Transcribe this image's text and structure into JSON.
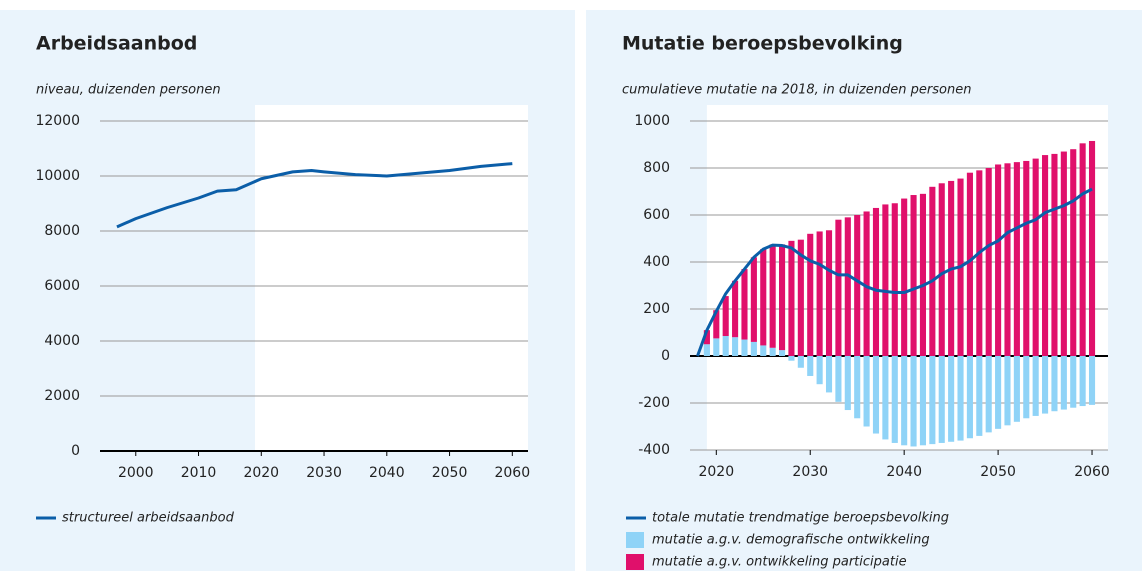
{
  "chart_data": [
    {
      "type": "line",
      "title": "Arbeidsaanbod",
      "subtitle": "niveau, duizenden personen",
      "forecast_start": 2019,
      "xlim": [
        1994.3,
        2062.5
      ],
      "xticks": [
        2000,
        2010,
        2020,
        2030,
        2040,
        2050,
        2060
      ],
      "ylim": [
        0,
        12000
      ],
      "yticks": [
        0,
        2000,
        4000,
        6000,
        8000,
        10000,
        12000
      ],
      "grid": true,
      "series": [
        {
          "name": "structureel arbeidsaanbod",
          "color": "#0b5ea8",
          "x": [
            1997,
            2000,
            2005,
            2010,
            2013,
            2016,
            2018,
            2020,
            2022,
            2025,
            2028,
            2030,
            2035,
            2040,
            2045,
            2050,
            2055,
            2060
          ],
          "values": [
            8150,
            8450,
            8850,
            9200,
            9450,
            9500,
            9700,
            9900,
            10000,
            10150,
            10200,
            10150,
            10050,
            10000,
            10100,
            10200,
            10350,
            10450
          ]
        }
      ]
    },
    {
      "type": "bar",
      "title": "Mutatie beroepsbevolking",
      "subtitle": "cumulatieve mutatie na 2018, in duizenden personen",
      "forecast_start": 2019,
      "xlim": [
        2017.2,
        2061.7
      ],
      "xticks": [
        2020,
        2030,
        2040,
        2050,
        2060
      ],
      "ylim": [
        -400,
        1000
      ],
      "yticks": [
        -400,
        -200,
        0,
        200,
        400,
        600,
        800,
        1000
      ],
      "grid": true,
      "x": [
        2019,
        2020,
        2021,
        2022,
        2023,
        2024,
        2025,
        2026,
        2027,
        2028,
        2029,
        2030,
        2031,
        2032,
        2033,
        2034,
        2035,
        2036,
        2037,
        2038,
        2039,
        2040,
        2041,
        2042,
        2043,
        2044,
        2045,
        2046,
        2047,
        2048,
        2049,
        2050,
        2051,
        2052,
        2053,
        2054,
        2055,
        2056,
        2057,
        2058,
        2059,
        2060
      ],
      "series": [
        {
          "name": "mutatie a.g.v. demografische ontwikkeling",
          "color": "#8fd3f7",
          "values": [
            50,
            75,
            85,
            80,
            70,
            60,
            45,
            35,
            25,
            -20,
            -50,
            -85,
            -120,
            -155,
            -195,
            -230,
            -265,
            -300,
            -330,
            -355,
            -370,
            -380,
            -385,
            -380,
            -375,
            -370,
            -365,
            -360,
            -350,
            -340,
            -325,
            -310,
            -295,
            -280,
            -265,
            -255,
            -245,
            -235,
            -228,
            -220,
            -213,
            -208
          ]
        },
        {
          "name": "mutatie a.g.v. ontwikkeling participatie",
          "color": "#e0106b",
          "values": [
            60,
            120,
            170,
            240,
            300,
            360,
            410,
            440,
            450,
            490,
            495,
            520,
            530,
            535,
            580,
            590,
            600,
            615,
            630,
            645,
            650,
            670,
            685,
            690,
            720,
            735,
            745,
            755,
            780,
            790,
            800,
            815,
            820,
            825,
            830,
            840,
            855,
            860,
            870,
            880,
            905,
            915
          ]
        }
      ],
      "line": {
        "name": "totale mutatie trendmatige beroepsbevolking",
        "color": "#0b5ea8",
        "x": [
          2018,
          2019,
          2020,
          2021,
          2022,
          2023,
          2024,
          2025,
          2026,
          2027,
          2028,
          2029,
          2030,
          2031,
          2032,
          2033,
          2034,
          2035,
          2036,
          2037,
          2038,
          2039,
          2040,
          2041,
          2042,
          2043,
          2044,
          2045,
          2046,
          2047,
          2048,
          2049,
          2050,
          2051,
          2052,
          2053,
          2054,
          2055,
          2056,
          2057,
          2058,
          2059,
          2060
        ],
        "values": [
          0,
          110,
          190,
          265,
          320,
          370,
          420,
          455,
          472,
          470,
          460,
          430,
          405,
          390,
          365,
          345,
          345,
          320,
          295,
          280,
          275,
          270,
          270,
          285,
          300,
          320,
          350,
          370,
          380,
          405,
          440,
          470,
          490,
          525,
          545,
          565,
          580,
          610,
          625,
          640,
          660,
          690,
          710
        ]
      }
    }
  ]
}
